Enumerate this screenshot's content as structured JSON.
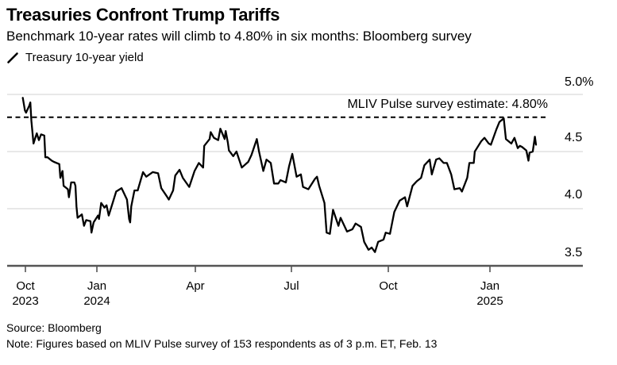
{
  "header": {
    "title": "Treasuries Confront Trump Tariffs",
    "subtitle": "Benchmark 10-year rates will climb to 4.80% in six months: Bloomberg survey"
  },
  "legend": {
    "series_label": "Treasury 10-year yield"
  },
  "annotation": {
    "survey_estimate_label": "MLIV Pulse survey estimate: 4.80%"
  },
  "footer": {
    "source": "Source: Bloomberg",
    "note": "Note: Figures based on MLIV Pulse survey of 153 respondents as of 3 p.m. ET, Feb. 13"
  },
  "colors": {
    "line": "#000000",
    "grid": "#d9d9d9",
    "axis": "#555555",
    "reference_line": "#000000",
    "text": "#000000",
    "background": "#ffffff"
  },
  "chart_data": {
    "type": "line",
    "title": "Treasury 10-year yield",
    "xlabel": "",
    "ylabel": "%",
    "ylim": [
      3.5,
      5.0
    ],
    "yticks": [
      "5.0%",
      "4.5",
      "4.0",
      "3.5"
    ],
    "ytick_values": [
      5.0,
      4.5,
      4.0,
      3.5
    ],
    "x_range_dates": [
      "2023-10-18",
      "2025-02-13"
    ],
    "x_ticks": [
      {
        "label": "Oct",
        "year": "2023"
      },
      {
        "label": "Jan",
        "year": "2024"
      },
      {
        "label": "Apr"
      },
      {
        "label": "Jul"
      },
      {
        "label": "Oct"
      },
      {
        "label": "Jan",
        "year": "2025"
      }
    ],
    "grid": true,
    "legend_position": "top-left",
    "reference_line": {
      "value": 4.8,
      "style": "dashed",
      "label": "MLIV Pulse survey estimate: 4.80%"
    },
    "series": [
      {
        "name": "Treasury 10-year yield",
        "unit": "%",
        "points": [
          [
            "2023-10-24",
            4.97
          ],
          [
            "2023-10-26",
            4.86
          ],
          [
            "2023-10-27",
            4.84
          ],
          [
            "2023-10-30",
            4.9
          ],
          [
            "2023-10-31",
            4.93
          ],
          [
            "2023-11-01",
            4.77
          ],
          [
            "2023-11-03",
            4.57
          ],
          [
            "2023-11-06",
            4.66
          ],
          [
            "2023-11-08",
            4.6
          ],
          [
            "2023-11-10",
            4.65
          ],
          [
            "2023-11-13",
            4.64
          ],
          [
            "2023-11-14",
            4.45
          ],
          [
            "2023-11-16",
            4.45
          ],
          [
            "2023-11-20",
            4.42
          ],
          [
            "2023-11-22",
            4.41
          ],
          [
            "2023-11-27",
            4.39
          ],
          [
            "2023-11-28",
            4.27
          ],
          [
            "2023-11-30",
            4.33
          ],
          [
            "2023-12-01",
            4.2
          ],
          [
            "2023-12-05",
            4.17
          ],
          [
            "2023-12-06",
            4.1
          ],
          [
            "2023-12-08",
            4.23
          ],
          [
            "2023-12-11",
            4.23
          ],
          [
            "2023-12-12",
            4.2
          ],
          [
            "2023-12-13",
            4.02
          ],
          [
            "2023-12-14",
            3.92
          ],
          [
            "2023-12-18",
            3.95
          ],
          [
            "2023-12-20",
            3.85
          ],
          [
            "2023-12-22",
            3.9
          ],
          [
            "2023-12-26",
            3.89
          ],
          [
            "2023-12-27",
            3.79
          ],
          [
            "2023-12-29",
            3.88
          ],
          [
            "2024-01-02",
            3.94
          ],
          [
            "2024-01-03",
            3.91
          ],
          [
            "2024-01-05",
            4.05
          ],
          [
            "2024-01-08",
            4.01
          ],
          [
            "2024-01-10",
            4.03
          ],
          [
            "2024-01-12",
            3.94
          ],
          [
            "2024-01-16",
            4.06
          ],
          [
            "2024-01-19",
            4.15
          ],
          [
            "2024-01-24",
            4.18
          ],
          [
            "2024-01-29",
            4.08
          ],
          [
            "2024-01-31",
            3.91
          ],
          [
            "2024-02-01",
            3.88
          ],
          [
            "2024-02-02",
            4.02
          ],
          [
            "2024-02-05",
            4.16
          ],
          [
            "2024-02-08",
            4.16
          ],
          [
            "2024-02-13",
            4.32
          ],
          [
            "2024-02-16",
            4.28
          ],
          [
            "2024-02-22",
            4.32
          ],
          [
            "2024-02-27",
            4.31
          ],
          [
            "2024-03-01",
            4.18
          ],
          [
            "2024-03-06",
            4.11
          ],
          [
            "2024-03-08",
            4.08
          ],
          [
            "2024-03-12",
            4.16
          ],
          [
            "2024-03-14",
            4.29
          ],
          [
            "2024-03-18",
            4.34
          ],
          [
            "2024-03-21",
            4.27
          ],
          [
            "2024-03-27",
            4.19
          ],
          [
            "2024-04-01",
            4.33
          ],
          [
            "2024-04-05",
            4.4
          ],
          [
            "2024-04-09",
            4.36
          ],
          [
            "2024-04-10",
            4.55
          ],
          [
            "2024-04-15",
            4.61
          ],
          [
            "2024-04-16",
            4.67
          ],
          [
            "2024-04-19",
            4.62
          ],
          [
            "2024-04-23",
            4.6
          ],
          [
            "2024-04-25",
            4.7
          ],
          [
            "2024-04-29",
            4.61
          ],
          [
            "2024-04-30",
            4.68
          ],
          [
            "2024-05-02",
            4.58
          ],
          [
            "2024-05-03",
            4.51
          ],
          [
            "2024-05-07",
            4.46
          ],
          [
            "2024-05-10",
            4.5
          ],
          [
            "2024-05-15",
            4.36
          ],
          [
            "2024-05-21",
            4.41
          ],
          [
            "2024-05-24",
            4.47
          ],
          [
            "2024-05-29",
            4.61
          ],
          [
            "2024-05-31",
            4.5
          ],
          [
            "2024-06-04",
            4.33
          ],
          [
            "2024-06-07",
            4.43
          ],
          [
            "2024-06-11",
            4.4
          ],
          [
            "2024-06-14",
            4.22
          ],
          [
            "2024-06-18",
            4.22
          ],
          [
            "2024-06-20",
            4.25
          ],
          [
            "2024-06-25",
            4.23
          ],
          [
            "2024-06-28",
            4.37
          ],
          [
            "2024-07-01",
            4.48
          ],
          [
            "2024-07-05",
            4.28
          ],
          [
            "2024-07-09",
            4.3
          ],
          [
            "2024-07-11",
            4.19
          ],
          [
            "2024-07-16",
            4.17
          ],
          [
            "2024-07-22",
            4.26
          ],
          [
            "2024-07-24",
            4.28
          ],
          [
            "2024-07-26",
            4.2
          ],
          [
            "2024-07-31",
            4.05
          ],
          [
            "2024-08-02",
            3.79
          ],
          [
            "2024-08-05",
            3.78
          ],
          [
            "2024-08-08",
            3.99
          ],
          [
            "2024-08-13",
            3.85
          ],
          [
            "2024-08-15",
            3.92
          ],
          [
            "2024-08-21",
            3.8
          ],
          [
            "2024-08-26",
            3.82
          ],
          [
            "2024-08-29",
            3.87
          ],
          [
            "2024-09-03",
            3.84
          ],
          [
            "2024-09-06",
            3.71
          ],
          [
            "2024-09-10",
            3.64
          ],
          [
            "2024-09-13",
            3.66
          ],
          [
            "2024-09-16",
            3.62
          ],
          [
            "2024-09-19",
            3.71
          ],
          [
            "2024-09-24",
            3.73
          ],
          [
            "2024-09-26",
            3.79
          ],
          [
            "2024-09-30",
            3.78
          ],
          [
            "2024-10-04",
            3.97
          ],
          [
            "2024-10-09",
            4.07
          ],
          [
            "2024-10-14",
            4.1
          ],
          [
            "2024-10-16",
            4.02
          ],
          [
            "2024-10-21",
            4.2
          ],
          [
            "2024-10-25",
            4.24
          ],
          [
            "2024-10-29",
            4.27
          ],
          [
            "2024-11-01",
            4.38
          ],
          [
            "2024-11-06",
            4.43
          ],
          [
            "2024-11-08",
            4.3
          ],
          [
            "2024-11-12",
            4.43
          ],
          [
            "2024-11-15",
            4.44
          ],
          [
            "2024-11-19",
            4.4
          ],
          [
            "2024-11-22",
            4.4
          ],
          [
            "2024-11-26",
            4.3
          ],
          [
            "2024-11-29",
            4.17
          ],
          [
            "2024-12-04",
            4.18
          ],
          [
            "2024-12-06",
            4.15
          ],
          [
            "2024-12-11",
            4.27
          ],
          [
            "2024-12-13",
            4.4
          ],
          [
            "2024-12-17",
            4.4
          ],
          [
            "2024-12-18",
            4.5
          ],
          [
            "2024-12-20",
            4.53
          ],
          [
            "2024-12-24",
            4.59
          ],
          [
            "2024-12-27",
            4.62
          ],
          [
            "2024-12-31",
            4.57
          ],
          [
            "2025-01-02",
            4.56
          ],
          [
            "2025-01-07",
            4.69
          ],
          [
            "2025-01-10",
            4.76
          ],
          [
            "2025-01-14",
            4.79
          ],
          [
            "2025-01-16",
            4.61
          ],
          [
            "2025-01-21",
            4.57
          ],
          [
            "2025-01-24",
            4.62
          ],
          [
            "2025-01-27",
            4.53
          ],
          [
            "2025-01-29",
            4.55
          ],
          [
            "2025-01-31",
            4.54
          ],
          [
            "2025-02-04",
            4.51
          ],
          [
            "2025-02-06",
            4.42
          ],
          [
            "2025-02-07",
            4.49
          ],
          [
            "2025-02-10",
            4.5
          ],
          [
            "2025-02-12",
            4.63
          ],
          [
            "2025-02-13",
            4.56
          ]
        ]
      }
    ]
  }
}
